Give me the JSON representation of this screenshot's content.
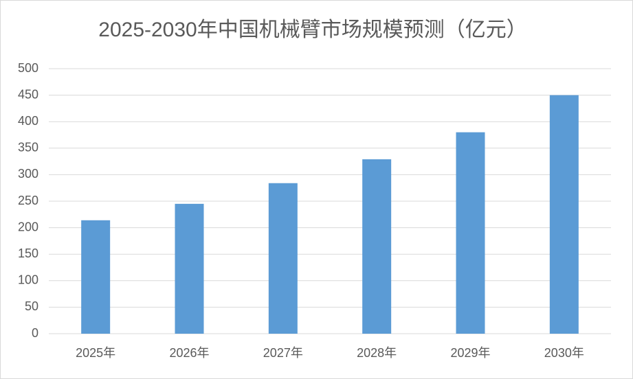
{
  "chart_data": {
    "type": "bar",
    "title": "2025-2030年中国机械臂市场规模预测（亿元）",
    "categories": [
      "2025年",
      "2026年",
      "2027年",
      "2028年",
      "2029年",
      "2030年"
    ],
    "values": [
      214,
      245,
      284,
      329,
      380,
      450
    ],
    "color": "#5b9bd5",
    "ylim": [
      0,
      500
    ],
    "yticks": [
      0,
      50,
      100,
      150,
      200,
      250,
      300,
      350,
      400,
      450,
      500
    ],
    "grid": true
  }
}
